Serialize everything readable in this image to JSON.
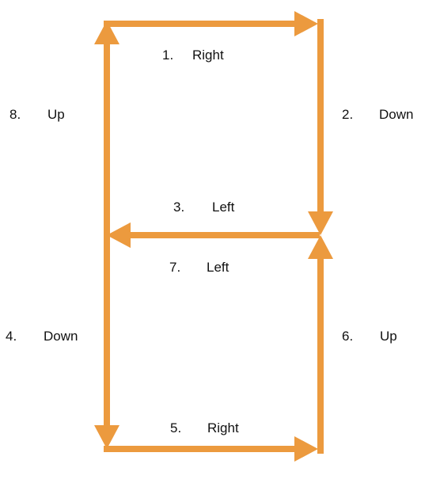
{
  "colors": {
    "arrow": "#EC9A3E",
    "text": "#111111",
    "background": "#ffffff"
  },
  "steps": [
    {
      "number": "1.",
      "direction": "Right"
    },
    {
      "number": "2.",
      "direction": "Down"
    },
    {
      "number": "3.",
      "direction": "Left"
    },
    {
      "number": "4.",
      "direction": "Down"
    },
    {
      "number": "5.",
      "direction": "Right"
    },
    {
      "number": "6.",
      "direction": "Up"
    },
    {
      "number": "7.",
      "direction": "Left"
    },
    {
      "number": "8.",
      "direction": "Up"
    }
  ]
}
